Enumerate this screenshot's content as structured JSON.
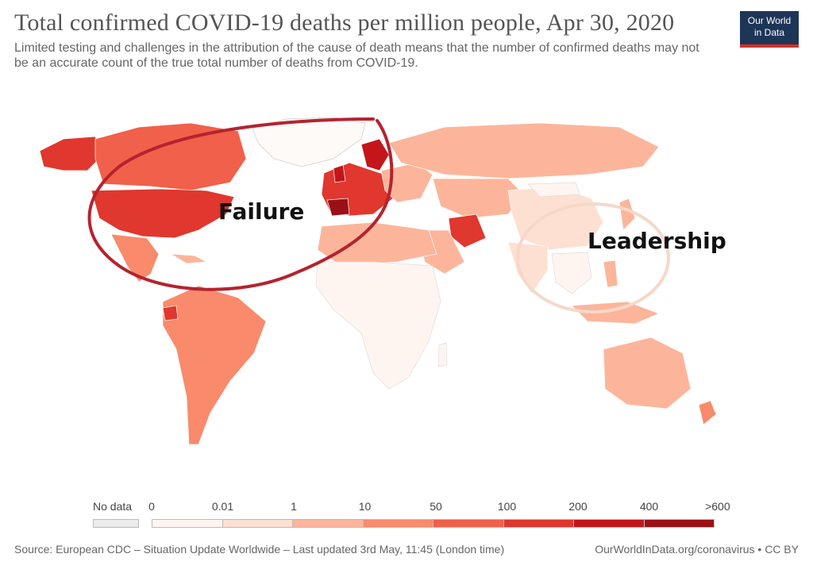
{
  "header": {
    "title": "Total confirmed COVID-19 deaths per million people, Apr 30, 2020",
    "subtitle": "Limited testing and challenges in the attribution of the cause of death means that the number of confirmed deaths may not be an accurate count of the true total number of deaths from COVID-19.",
    "logo_line1": "Our World",
    "logo_line2": "in Data"
  },
  "annotations": {
    "failure": "Failure",
    "leadership": "Leadership"
  },
  "legend": {
    "no_data_label": "No data",
    "tick_labels": [
      "0",
      "0.01",
      "1",
      "10",
      "50",
      "100",
      "200",
      "400",
      ">600"
    ],
    "bin_colors": [
      "#fff5f0",
      "#fde0d2",
      "#fcb59a",
      "#f98a6b",
      "#f1604a",
      "#e0372e",
      "#c4151b",
      "#9b1016"
    ],
    "no_data_color": "#ebebeb"
  },
  "footer": {
    "source": "Source: European CDC – Situation Update Worldwide – Last updated 3rd May, 11:45 (London time)",
    "url": "OurWorldInData.org/coronavirus • CC BY"
  },
  "colors": {
    "failure_circle": "#b5232e",
    "leadership_circle": "#f5d8c8"
  }
}
